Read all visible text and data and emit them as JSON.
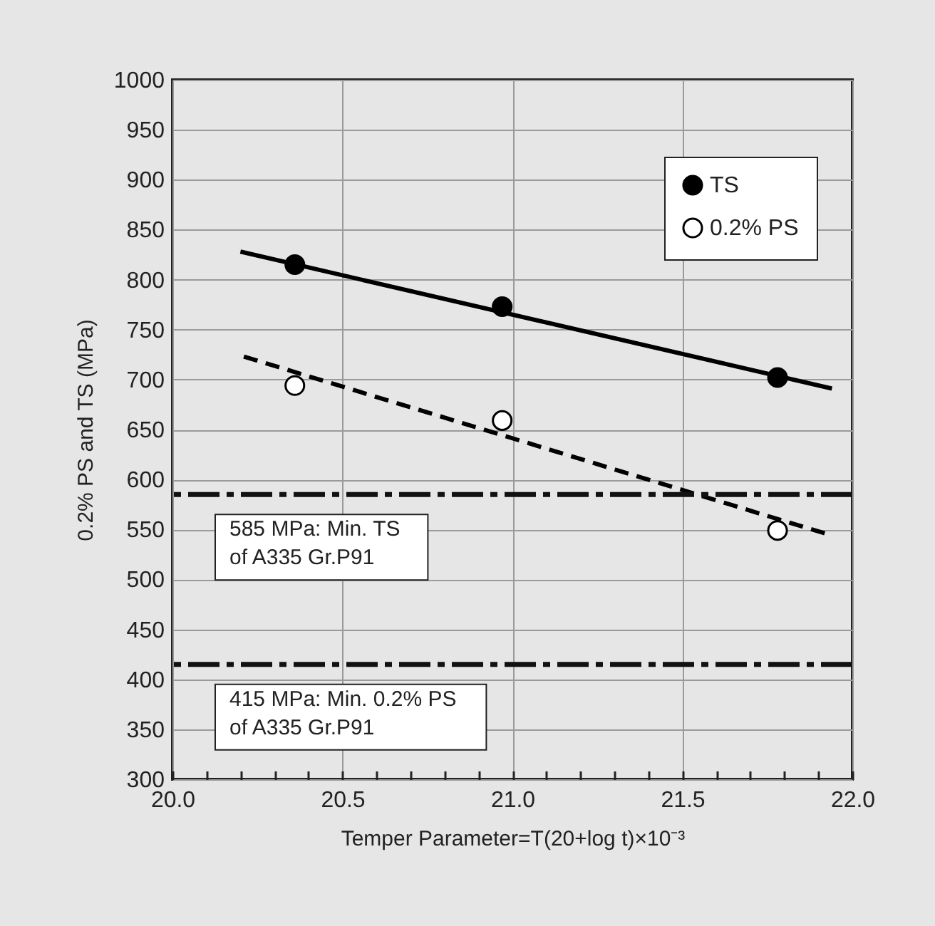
{
  "chart_data": {
    "type": "scatter",
    "xlabel": "Temper Parameter=T(20+log t)×10⁻³",
    "ylabel": "0.2% PS and TS (MPa)",
    "xlim": [
      20.0,
      22.0
    ],
    "xticks": [
      {
        "value": 20.0,
        "label": "20.0"
      },
      {
        "value": 20.1,
        "label": null
      },
      {
        "value": 20.2,
        "label": null
      },
      {
        "value": 20.3,
        "label": null
      },
      {
        "value": 20.4,
        "label": null
      },
      {
        "value": 20.5,
        "label": "20.5"
      },
      {
        "value": 20.6,
        "label": null
      },
      {
        "value": 20.7,
        "label": null
      },
      {
        "value": 20.8,
        "label": null
      },
      {
        "value": 20.9,
        "label": null
      },
      {
        "value": 21.0,
        "label": "21.0"
      },
      {
        "value": 21.1,
        "label": null
      },
      {
        "value": 21.2,
        "label": null
      },
      {
        "value": 21.3,
        "label": null
      },
      {
        "value": 21.4,
        "label": null
      },
      {
        "value": 21.5,
        "label": "21.5"
      },
      {
        "value": 21.6,
        "label": null
      },
      {
        "value": 21.7,
        "label": null
      },
      {
        "value": 21.8,
        "label": null
      },
      {
        "value": 21.9,
        "label": null
      },
      {
        "value": 22.0,
        "label": "22.0"
      }
    ],
    "ylim": [
      300,
      1000
    ],
    "yticks": [
      300,
      350,
      400,
      450,
      500,
      550,
      600,
      650,
      700,
      750,
      800,
      850,
      900,
      950,
      1000
    ],
    "grid": true,
    "legend": "top right",
    "marker": "circle",
    "series": [
      {
        "type": "line",
        "color": "#000000",
        "line_style": "solid",
        "marker": "none",
        "x": [
          20.2,
          21.94
        ],
        "values": [
          828,
          691
        ]
      },
      {
        "type": "line",
        "color": "#000000",
        "line_style": "dashed",
        "marker": "none",
        "x": [
          20.21,
          21.92
        ],
        "values": [
          723,
          546
        ]
      },
      {
        "name": "TS",
        "type": "scatter",
        "color": "#000000",
        "x": [
          20.36,
          20.97,
          21.78
        ],
        "values": [
          815,
          773,
          702
        ]
      },
      {
        "name": "0.2% PS",
        "type": "scatter",
        "color": "#ffffff",
        "x": [
          20.36,
          20.97,
          21.78
        ],
        "values": [
          694,
          659,
          549
        ]
      }
    ],
    "ref_lines": [
      {
        "axis": "y",
        "value": 585,
        "label": "585 MPa: Min. TS\nof A335 Gr.P91"
      },
      {
        "axis": "y",
        "value": 415,
        "label": "415 MPa: Min. 0.2% PS\nof A335 Gr.P91"
      }
    ]
  }
}
